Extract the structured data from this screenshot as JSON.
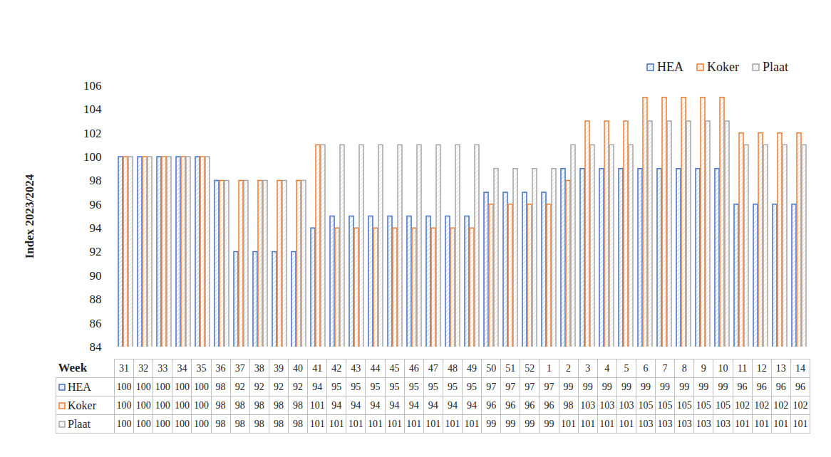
{
  "chart_data": {
    "type": "bar",
    "categories": [
      "31",
      "32",
      "33",
      "34",
      "35",
      "36",
      "37",
      "38",
      "39",
      "40",
      "41",
      "42",
      "43",
      "44",
      "45",
      "46",
      "47",
      "48",
      "49",
      "50",
      "51",
      "52",
      "1",
      "2",
      "3",
      "4",
      "5",
      "6",
      "7",
      "8",
      "9",
      "10",
      "11",
      "12",
      "13",
      "14"
    ],
    "series": [
      {
        "name": "HEA",
        "color": "#4472c4",
        "values": [
          100,
          100,
          100,
          100,
          100,
          98,
          92,
          92,
          92,
          92,
          94,
          95,
          95,
          95,
          95,
          95,
          95,
          95,
          95,
          97,
          97,
          97,
          97,
          99,
          99,
          99,
          99,
          99,
          99,
          99,
          99,
          99,
          96,
          96,
          96,
          96
        ]
      },
      {
        "name": "Koker",
        "color": "#ed7d31",
        "values": [
          100,
          100,
          100,
          100,
          100,
          98,
          98,
          98,
          98,
          98,
          101,
          94,
          94,
          94,
          94,
          94,
          94,
          94,
          94,
          96,
          96,
          96,
          96,
          98,
          103,
          103,
          103,
          105,
          105,
          105,
          105,
          105,
          102,
          102,
          102,
          102
        ]
      },
      {
        "name": "Plaat",
        "color": "#a5a5a5",
        "values": [
          100,
          100,
          100,
          100,
          100,
          98,
          98,
          98,
          98,
          98,
          101,
          101,
          101,
          101,
          101,
          101,
          101,
          101,
          101,
          99,
          99,
          99,
          99,
          101,
          101,
          101,
          101,
          103,
          103,
          103,
          103,
          103,
          101,
          101,
          101,
          101
        ]
      }
    ],
    "xlabel": "Week",
    "ylabel": "Index 2023/2024",
    "ylim": [
      84,
      106
    ],
    "yticks": [
      84,
      86,
      88,
      90,
      92,
      94,
      96,
      98,
      100,
      102,
      104,
      106
    ],
    "grid": false,
    "legend": "top-right"
  }
}
